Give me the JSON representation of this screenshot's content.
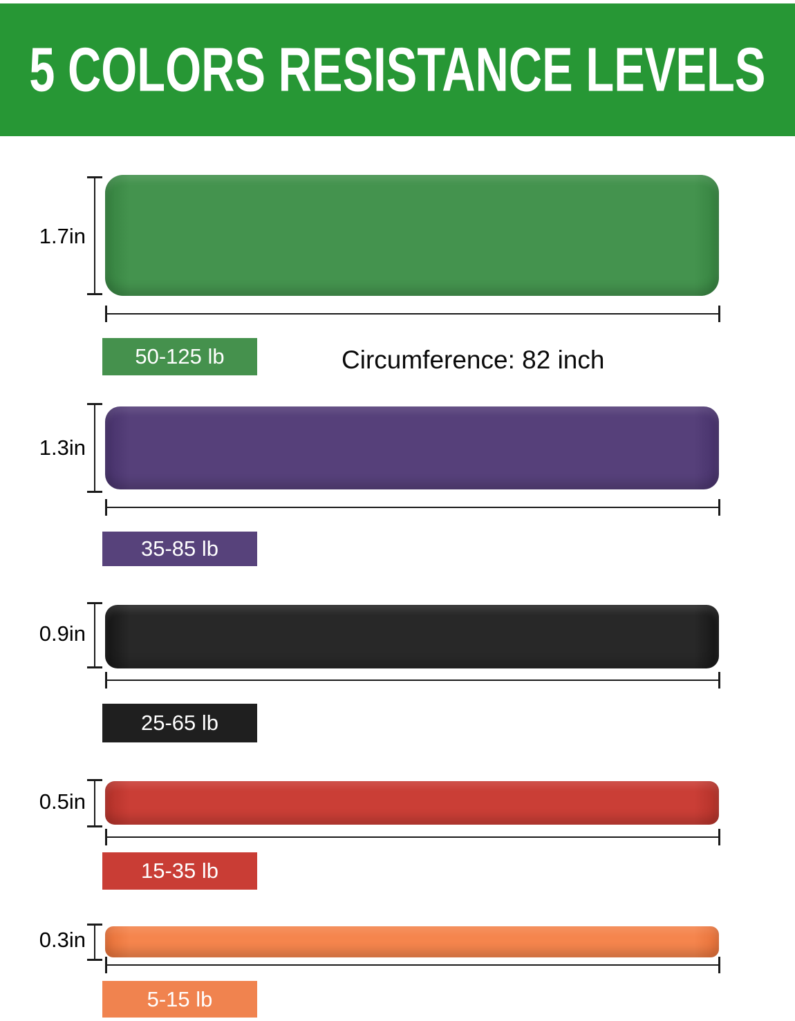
{
  "header": {
    "title": "5 COLORS RESISTANCE LEVELS",
    "bg_color": "#279735",
    "text_color": "#ffffff"
  },
  "circumference_note": "Circumference: 82 inch",
  "bands": [
    {
      "id": "green",
      "width_label": "1.7in",
      "resistance_label": "50-125 lb",
      "color": "#44934e",
      "edge_color": "#35813f",
      "label_bg": "#45914d"
    },
    {
      "id": "purple",
      "width_label": "1.3in",
      "resistance_label": "35-85 lb",
      "color": "#56407a",
      "edge_color": "#46316a",
      "label_bg": "#57427b"
    },
    {
      "id": "black",
      "width_label": "0.9in",
      "resistance_label": "25-65 lb",
      "color": "#282828",
      "edge_color": "#151515",
      "label_bg": "#1f1f1f"
    },
    {
      "id": "red",
      "width_label": "0.5in",
      "resistance_label": "15-35 lb",
      "color": "#ca3e36",
      "edge_color": "#b23129",
      "label_bg": "#c93d35"
    },
    {
      "id": "orange",
      "width_label": "0.3in",
      "resistance_label": "5-15 lb",
      "color": "#f5854d",
      "edge_color": "#e57038",
      "label_bg": "#f0834f"
    }
  ]
}
